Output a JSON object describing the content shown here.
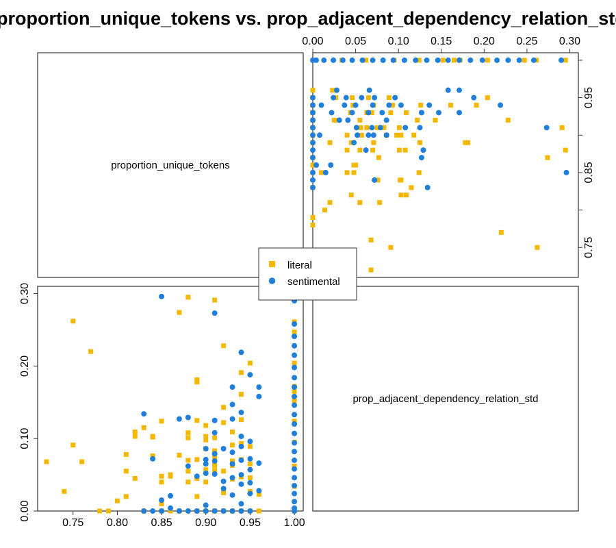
{
  "chart_data": {
    "type": "scatter",
    "title": "proportion_unique_tokens vs. prop_adjacent_dependency_relation_std",
    "variables": [
      "proportion_unique_tokens",
      "prop_adjacent_dependency_relation_std"
    ],
    "x_range": [
      0.71,
      1.01
    ],
    "y_range": [
      0.0,
      0.31
    ],
    "x_ticks": [
      "0.75",
      "0.80",
      "0.85",
      "0.90",
      "0.95",
      "1.00"
    ],
    "y_ticks": [
      "0.00",
      "0.10",
      "0.20",
      "0.30"
    ],
    "grid": false,
    "legend_position": "center",
    "series": [
      {
        "name": "literal",
        "color": "#F5B800",
        "marker": "square",
        "points": [
          [
            0.72,
            0.068
          ],
          [
            0.74,
            0.027
          ],
          [
            0.75,
            0.262
          ],
          [
            0.75,
            0.091
          ],
          [
            0.76,
            0.068
          ],
          [
            0.77,
            0.22
          ],
          [
            0.78,
            0.0
          ],
          [
            0.79,
            0.0
          ],
          [
            0.8,
            0.014
          ],
          [
            0.81,
            0.078
          ],
          [
            0.81,
            0.055
          ],
          [
            0.81,
            0.02
          ],
          [
            0.82,
            0.103
          ],
          [
            0.82,
            0.109
          ],
          [
            0.82,
            0.045
          ],
          [
            0.83,
            0.115
          ],
          [
            0.83,
            0.0
          ],
          [
            0.84,
            0.103
          ],
          [
            0.84,
            0.102
          ],
          [
            0.84,
            0.076
          ],
          [
            0.85,
            0.04
          ],
          [
            0.85,
            0.048
          ],
          [
            0.85,
            0.124
          ],
          [
            0.85,
            0.0
          ],
          [
            0.85,
            0.01
          ],
          [
            0.86,
            0.048
          ],
          [
            0.86,
            0.0
          ],
          [
            0.86,
            0.05
          ],
          [
            0.86,
            0.0
          ],
          [
            0.87,
            0.274
          ],
          [
            0.87,
            0.0
          ],
          [
            0.87,
            0.0
          ],
          [
            0.87,
            0.077
          ],
          [
            0.87,
            0.0
          ],
          [
            0.88,
            0.295
          ],
          [
            0.88,
            0.055
          ],
          [
            0.88,
            0.108
          ],
          [
            0.88,
            0.04
          ],
          [
            0.88,
            0.07
          ],
          [
            0.88,
            0.101
          ],
          [
            0.89,
            0.125
          ],
          [
            0.89,
            0.178
          ],
          [
            0.89,
            0.181
          ],
          [
            0.89,
            0.071
          ],
          [
            0.89,
            0.02
          ],
          [
            0.89,
            0.0
          ],
          [
            0.89,
            0.045
          ],
          [
            0.89,
            0.0
          ],
          [
            0.9,
            0.118
          ],
          [
            0.9,
            0.057
          ],
          [
            0.9,
            0.098
          ],
          [
            0.9,
            0.086
          ],
          [
            0.9,
            0.04
          ],
          [
            0.9,
            0.103
          ],
          [
            0.9,
            0.0
          ],
          [
            0.9,
            0.0
          ],
          [
            0.91,
            0.291
          ],
          [
            0.91,
            0.101
          ],
          [
            0.91,
            0.075
          ],
          [
            0.91,
            0.083
          ],
          [
            0.91,
            0.063
          ],
          [
            0.91,
            0.056
          ],
          [
            0.91,
            0.0
          ],
          [
            0.91,
            0.0
          ],
          [
            0.92,
            0.228
          ],
          [
            0.92,
            0.143
          ],
          [
            0.92,
            0.122
          ],
          [
            0.92,
            0.055
          ],
          [
            0.92,
            0.03
          ],
          [
            0.92,
            0.0
          ],
          [
            0.92,
            0.025
          ],
          [
            0.92,
            0.0
          ],
          [
            0.93,
            0.109
          ],
          [
            0.93,
            0.063
          ],
          [
            0.93,
            0.091
          ],
          [
            0.93,
            0.069
          ],
          [
            0.93,
            0.0
          ],
          [
            0.93,
            0.044
          ],
          [
            0.93,
            0.0
          ],
          [
            0.93,
            0.0
          ],
          [
            0.94,
            0.191
          ],
          [
            0.94,
            0.161
          ],
          [
            0.94,
            0.126
          ],
          [
            0.94,
            0.093
          ],
          [
            0.94,
            0.071
          ],
          [
            0.94,
            0.047
          ],
          [
            0.94,
            0.0
          ],
          [
            0.94,
            0.0
          ],
          [
            0.95,
            0.204
          ],
          [
            0.95,
            0.089
          ],
          [
            0.95,
            0.065
          ],
          [
            0.95,
            0.046
          ],
          [
            0.95,
            0.027
          ],
          [
            0.95,
            0.0
          ],
          [
            0.96,
            0.023
          ],
          [
            0.96,
            0.0
          ],
          [
            1.0,
            0.295
          ],
          [
            1.0,
            0.261
          ],
          [
            1.0,
            0.247
          ],
          [
            1.0,
            0.204
          ],
          [
            1.0,
            0.172
          ],
          [
            1.0,
            0.165
          ],
          [
            1.0,
            0.152
          ],
          [
            1.0,
            0.124
          ],
          [
            1.0,
            0.095
          ],
          [
            1.0,
            0.062
          ],
          [
            1.0,
            0.034
          ],
          [
            1.0,
            0.0
          ]
        ]
      },
      {
        "name": "sentimental",
        "color": "#1F7FDB",
        "marker": "circle",
        "points": [
          [
            0.83,
            0.134
          ],
          [
            0.83,
            0.0
          ],
          [
            0.84,
            0.0
          ],
          [
            0.84,
            0.072
          ],
          [
            0.85,
            0.296
          ],
          [
            0.85,
            0.015
          ],
          [
            0.85,
            0.0
          ],
          [
            0.86,
            0.004
          ],
          [
            0.86,
            0.021
          ],
          [
            0.87,
            0.0
          ],
          [
            0.87,
            0.127
          ],
          [
            0.88,
            0.129
          ],
          [
            0.88,
            0.0
          ],
          [
            0.88,
            0.062
          ],
          [
            0.89,
            0.048
          ],
          [
            0.89,
            0.0
          ],
          [
            0.9,
            0.086
          ],
          [
            0.9,
            0.071
          ],
          [
            0.9,
            0.065
          ],
          [
            0.9,
            0.052
          ],
          [
            0.9,
            0.0
          ],
          [
            0.9,
            0.008
          ],
          [
            0.91,
            0.273
          ],
          [
            0.91,
            0.125
          ],
          [
            0.91,
            0.108
          ],
          [
            0.91,
            0.079
          ],
          [
            0.91,
            0.069
          ],
          [
            0.91,
            0.051
          ],
          [
            0.91,
            0.0
          ],
          [
            0.92,
            0.0
          ],
          [
            0.92,
            0.031
          ],
          [
            0.92,
            0.041
          ],
          [
            0.92,
            0.086
          ],
          [
            0.93,
            0.171
          ],
          [
            0.93,
            0.147
          ],
          [
            0.93,
            0.127
          ],
          [
            0.93,
            0.081
          ],
          [
            0.93,
            0.065
          ],
          [
            0.93,
            0.046
          ],
          [
            0.93,
            0.022
          ],
          [
            0.93,
            0.0
          ],
          [
            0.94,
            0.219
          ],
          [
            0.94,
            0.136
          ],
          [
            0.94,
            0.103
          ],
          [
            0.94,
            0.089
          ],
          [
            0.94,
            0.07
          ],
          [
            0.94,
            0.05
          ],
          [
            0.94,
            0.037
          ],
          [
            0.94,
            0.01
          ],
          [
            0.94,
            0.0
          ],
          [
            0.95,
            0.188
          ],
          [
            0.95,
            0.096
          ],
          [
            0.95,
            0.072
          ],
          [
            0.95,
            0.057
          ],
          [
            0.95,
            0.039
          ],
          [
            0.95,
            0.024
          ],
          [
            0.95,
            0.0
          ],
          [
            0.96,
            0.171
          ],
          [
            0.96,
            0.158
          ],
          [
            0.96,
            0.066
          ],
          [
            0.96,
            0.028
          ],
          [
            1.0,
            0.29
          ],
          [
            1.0,
            0.258
          ],
          [
            1.0,
            0.241
          ],
          [
            1.0,
            0.228
          ],
          [
            1.0,
            0.215
          ],
          [
            1.0,
            0.198
          ],
          [
            1.0,
            0.184
          ],
          [
            1.0,
            0.171
          ],
          [
            1.0,
            0.158
          ],
          [
            1.0,
            0.146
          ],
          [
            1.0,
            0.133
          ],
          [
            1.0,
            0.12
          ],
          [
            1.0,
            0.107
          ],
          [
            1.0,
            0.094
          ],
          [
            1.0,
            0.082
          ],
          [
            1.0,
            0.07
          ],
          [
            1.0,
            0.058
          ],
          [
            1.0,
            0.046
          ],
          [
            1.0,
            0.035
          ],
          [
            1.0,
            0.024
          ],
          [
            1.0,
            0.013
          ],
          [
            1.0,
            0.004
          ],
          [
            1.0,
            0.0
          ]
        ]
      }
    ]
  }
}
